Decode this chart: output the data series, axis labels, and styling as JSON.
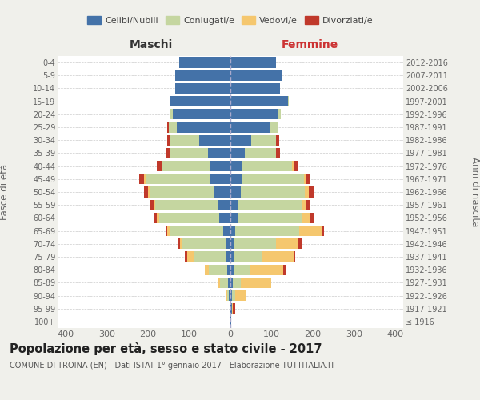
{
  "age_groups": [
    "100+",
    "95-99",
    "90-94",
    "85-89",
    "80-84",
    "75-79",
    "70-74",
    "65-69",
    "60-64",
    "55-59",
    "50-54",
    "45-49",
    "40-44",
    "35-39",
    "30-34",
    "25-29",
    "20-24",
    "15-19",
    "10-14",
    "5-9",
    "0-4"
  ],
  "birth_years": [
    "≤ 1916",
    "1917-1921",
    "1922-1926",
    "1927-1931",
    "1932-1936",
    "1937-1941",
    "1942-1946",
    "1947-1951",
    "1952-1956",
    "1957-1961",
    "1962-1966",
    "1967-1971",
    "1972-1976",
    "1977-1981",
    "1982-1986",
    "1987-1991",
    "1992-1996",
    "1997-2001",
    "2002-2006",
    "2007-2011",
    "2012-2016"
  ],
  "maschi": {
    "celibi": [
      2,
      2,
      3,
      5,
      8,
      10,
      12,
      18,
      28,
      32,
      40,
      50,
      48,
      55,
      75,
      130,
      140,
      145,
      135,
      135,
      125
    ],
    "coniugati": [
      0,
      0,
      5,
      20,
      45,
      80,
      105,
      130,
      145,
      150,
      155,
      155,
      120,
      90,
      70,
      20,
      8,
      3,
      0,
      0,
      0
    ],
    "vedovi": [
      0,
      0,
      2,
      5,
      10,
      15,
      5,
      5,
      5,
      5,
      5,
      5,
      0,
      0,
      0,
      0,
      0,
      0,
      0,
      0,
      0
    ],
    "divorziati": [
      0,
      0,
      0,
      0,
      0,
      5,
      5,
      5,
      8,
      10,
      10,
      12,
      10,
      10,
      8,
      3,
      0,
      0,
      0,
      0,
      0
    ]
  },
  "femmine": {
    "nubili": [
      2,
      3,
      3,
      5,
      8,
      8,
      10,
      12,
      18,
      20,
      25,
      28,
      30,
      35,
      50,
      95,
      115,
      140,
      120,
      125,
      110
    ],
    "coniugate": [
      0,
      0,
      8,
      20,
      40,
      70,
      100,
      155,
      155,
      155,
      155,
      150,
      120,
      75,
      60,
      20,
      8,
      2,
      0,
      0,
      0
    ],
    "vedove": [
      0,
      3,
      25,
      75,
      80,
      75,
      55,
      55,
      20,
      10,
      10,
      5,
      5,
      0,
      0,
      0,
      0,
      0,
      0,
      0,
      0
    ],
    "divorziate": [
      0,
      5,
      0,
      0,
      8,
      5,
      8,
      5,
      10,
      10,
      15,
      12,
      10,
      10,
      8,
      0,
      0,
      0,
      0,
      0,
      0
    ]
  },
  "colors": {
    "celibi_nubili": "#4472a8",
    "coniugati": "#c5d6a0",
    "vedovi": "#f5c76e",
    "divorziati": "#c0392b"
  },
  "xlim": 420,
  "title": "Popolazione per età, sesso e stato civile - 2017",
  "subtitle": "COMUNE DI TROINA (EN) - Dati ISTAT 1° gennaio 2017 - Elaborazione TUTTITALIA.IT",
  "ylabel_left": "Fasce di età",
  "ylabel_right": "Anni di nascita",
  "xlabel_left": "Maschi",
  "xlabel_right": "Femmine",
  "bg_color": "#f0f0eb",
  "plot_bg": "#ffffff"
}
